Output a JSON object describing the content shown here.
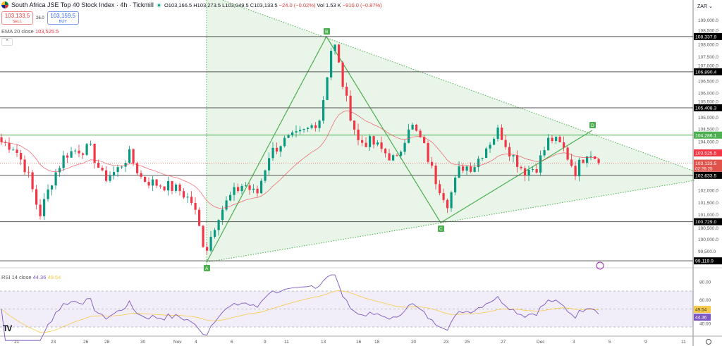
{
  "header": {
    "title": "South Africa JSE Top 40 Stock Index · 4h · Tickmill",
    "open": "O103,166.5",
    "high": "H103,273.5",
    "low": "L103,049.5",
    "close": "C103,133.5",
    "change": "−24.0 (−0.02%)",
    "volume": "Vol 1.53 K",
    "vol_change": "−910.0 (−0.87%)"
  },
  "trade": {
    "sell_price": "103,133.5",
    "sell_label": "SELL",
    "spread": "26.0",
    "buy_price": "103,159.5",
    "buy_label": "BUY"
  },
  "ema": {
    "label": "EMA 20 close",
    "value": "103,525.5"
  },
  "rsi": {
    "label": "RSI 14 close",
    "value": "44.36",
    "ma_value": "49.54"
  },
  "currency": "ZAR",
  "colors": {
    "up": "#089981",
    "down": "#f23645",
    "ema": "#f23645",
    "rsi": "#7e57c2",
    "rsi_ma": "#f7c948",
    "pattern": "#4caf50"
  },
  "chart_data": {
    "type": "candlestick",
    "timeframe": "4h",
    "y_ticks": [
      109000,
      108500,
      108000,
      107500,
      107000,
      106500,
      106000,
      105500,
      105000,
      104500,
      104000,
      102000,
      101500,
      101000,
      100500,
      100000,
      99500
    ],
    "x_ticks": [
      "21",
      "23",
      "26",
      "28",
      "30",
      "Nov",
      "4",
      "6",
      "9",
      "11",
      "13",
      "16",
      "18",
      "20",
      "23",
      "25",
      "27",
      "Dec",
      "3",
      "5",
      "9",
      "11"
    ],
    "approx_closes": [
      104000,
      103800,
      102800,
      101000,
      102500,
      103500,
      103700,
      103700,
      102500,
      102800,
      103500,
      102500,
      102300,
      102200,
      102000,
      101500,
      99500,
      101000,
      101800,
      102300,
      101800,
      103500,
      104000,
      104200,
      104500,
      105000,
      108300,
      105800,
      104000,
      104000,
      103600,
      103200,
      104800,
      104000,
      102500,
      101500,
      103000,
      103000,
      103800,
      104500,
      103500,
      102800,
      103000,
      104200,
      103800,
      102800,
      103700,
      103133.5
    ],
    "levels": [
      {
        "price": 108337.9,
        "label": "108,337.9"
      },
      {
        "price": 106890.4,
        "label": "106,890.4"
      },
      {
        "price": 105408.3,
        "label": "105,408.3"
      },
      {
        "price": 104286.1,
        "label": "104,286.1",
        "color": "#4caf50"
      },
      {
        "price": 102633.5,
        "label": "102,633.5"
      },
      {
        "price": 100729.0,
        "label": "100,729.0"
      },
      {
        "price": 99119.9,
        "label": "99,119.9"
      }
    ],
    "last_price": {
      "label": "103,133.5",
      "countdown": "02:26:25"
    },
    "ema_label": "103,525.5",
    "pattern_points": [
      "A",
      "B",
      "C",
      "D"
    ],
    "rsi_ticks": [
      "80.00",
      "60.00",
      "40.00"
    ],
    "rsi_bands": [
      70,
      50,
      30
    ]
  }
}
